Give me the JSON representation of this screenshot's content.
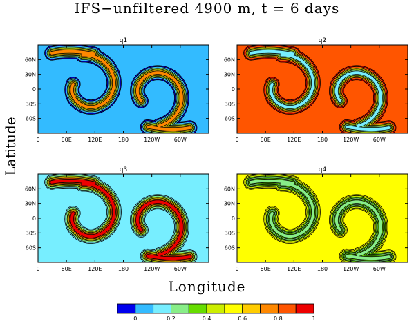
{
  "figure": {
    "title": "IFS−unfiltered 4900 m, t = 6 days",
    "ylabel": "Latitude",
    "xlabel": "Longitude"
  },
  "chart_data": {
    "type": "heatmap",
    "title": "IFS−unfiltered 4900 m, t = 6 days",
    "xlabel": "Longitude",
    "ylabel": "Latitude",
    "x_ticks": [
      "0",
      "60E",
      "120E",
      "180",
      "120W",
      "60W"
    ],
    "y_ticks": [
      "60N",
      "30N",
      "0",
      "30S",
      "60S"
    ],
    "panels": [
      {
        "name": "q1",
        "background_level": 0.1,
        "ring_levels": [
          0,
          0.1,
          0.3,
          0.5,
          0.7,
          0.8
        ]
      },
      {
        "name": "q2",
        "background_level": 0.9,
        "ring_levels": [
          1,
          0.9,
          0.7,
          0.5,
          0.3,
          0.2
        ]
      },
      {
        "name": "q3",
        "background_level": 0.2,
        "ring_levels": [
          0.2,
          0.3,
          0.5,
          0.7,
          0.9,
          1
        ]
      },
      {
        "name": "q4",
        "background_level": 0.6,
        "ring_levels": [
          0.6,
          0.5,
          0.4,
          0.3,
          0.4,
          0.3
        ]
      }
    ],
    "colorbar": {
      "tick_labels": [
        "0",
        "0.2",
        "0.4",
        "0.6",
        "0.8",
        "1"
      ],
      "colors": [
        "#0000ee",
        "#33bbff",
        "#77eeff",
        "#88ee88",
        "#66dd00",
        "#ccee00",
        "#ffff00",
        "#ffcc00",
        "#ff8800",
        "#ff5500",
        "#ee0000"
      ]
    }
  }
}
